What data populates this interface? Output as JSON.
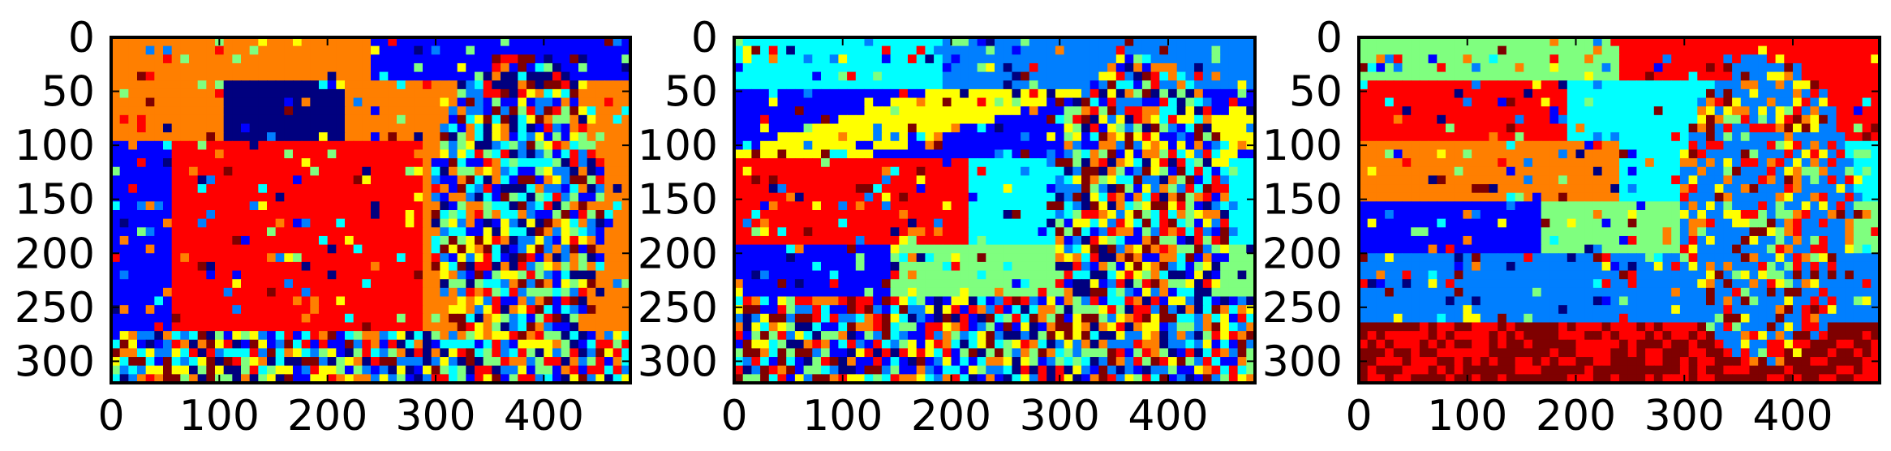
{
  "chart_data": [
    {
      "type": "heatmap",
      "title": "",
      "xlabel": "",
      "ylabel": "",
      "xlim": [
        0,
        480
      ],
      "ylim": [
        320,
        0
      ],
      "x_ticks": [
        0,
        100,
        200,
        300,
        400
      ],
      "y_ticks": [
        0,
        50,
        100,
        150,
        200,
        250,
        300
      ],
      "x_tick_labels": [
        "0",
        "100",
        "200",
        "300",
        "400"
      ],
      "y_tick_labels": [
        "0",
        "50",
        "100",
        "150",
        "200",
        "250",
        "300"
      ],
      "colormap": "jet",
      "grid": false
    },
    {
      "type": "heatmap",
      "title": "",
      "xlabel": "",
      "ylabel": "",
      "xlim": [
        0,
        480
      ],
      "ylim": [
        320,
        0
      ],
      "x_ticks": [
        0,
        100,
        200,
        300,
        400
      ],
      "y_ticks": [
        0,
        50,
        100,
        150,
        200,
        250,
        300
      ],
      "x_tick_labels": [
        "0",
        "100",
        "200",
        "300",
        "400"
      ],
      "y_tick_labels": [
        "0",
        "50",
        "100",
        "150",
        "200",
        "250",
        "300"
      ],
      "colormap": "jet",
      "grid": false
    },
    {
      "type": "heatmap",
      "title": "",
      "xlabel": "",
      "ylabel": "",
      "xlim": [
        0,
        480
      ],
      "ylim": [
        320,
        0
      ],
      "x_ticks": [
        0,
        100,
        200,
        300,
        400
      ],
      "y_ticks": [
        0,
        50,
        100,
        150,
        200,
        250,
        300
      ],
      "x_tick_labels": [
        "0",
        "100",
        "200",
        "300",
        "400"
      ],
      "y_tick_labels": [
        "0",
        "50",
        "100",
        "150",
        "200",
        "250",
        "300"
      ],
      "colormap": "jet",
      "grid": false
    }
  ],
  "colors": {
    "jet": [
      "#00007f",
      "#0000ff",
      "#007fff",
      "#00ffff",
      "#7fff7f",
      "#ffff00",
      "#ff7f00",
      "#ff0000",
      "#7f0000"
    ],
    "axis": "#000000",
    "background": "#ffffff"
  }
}
